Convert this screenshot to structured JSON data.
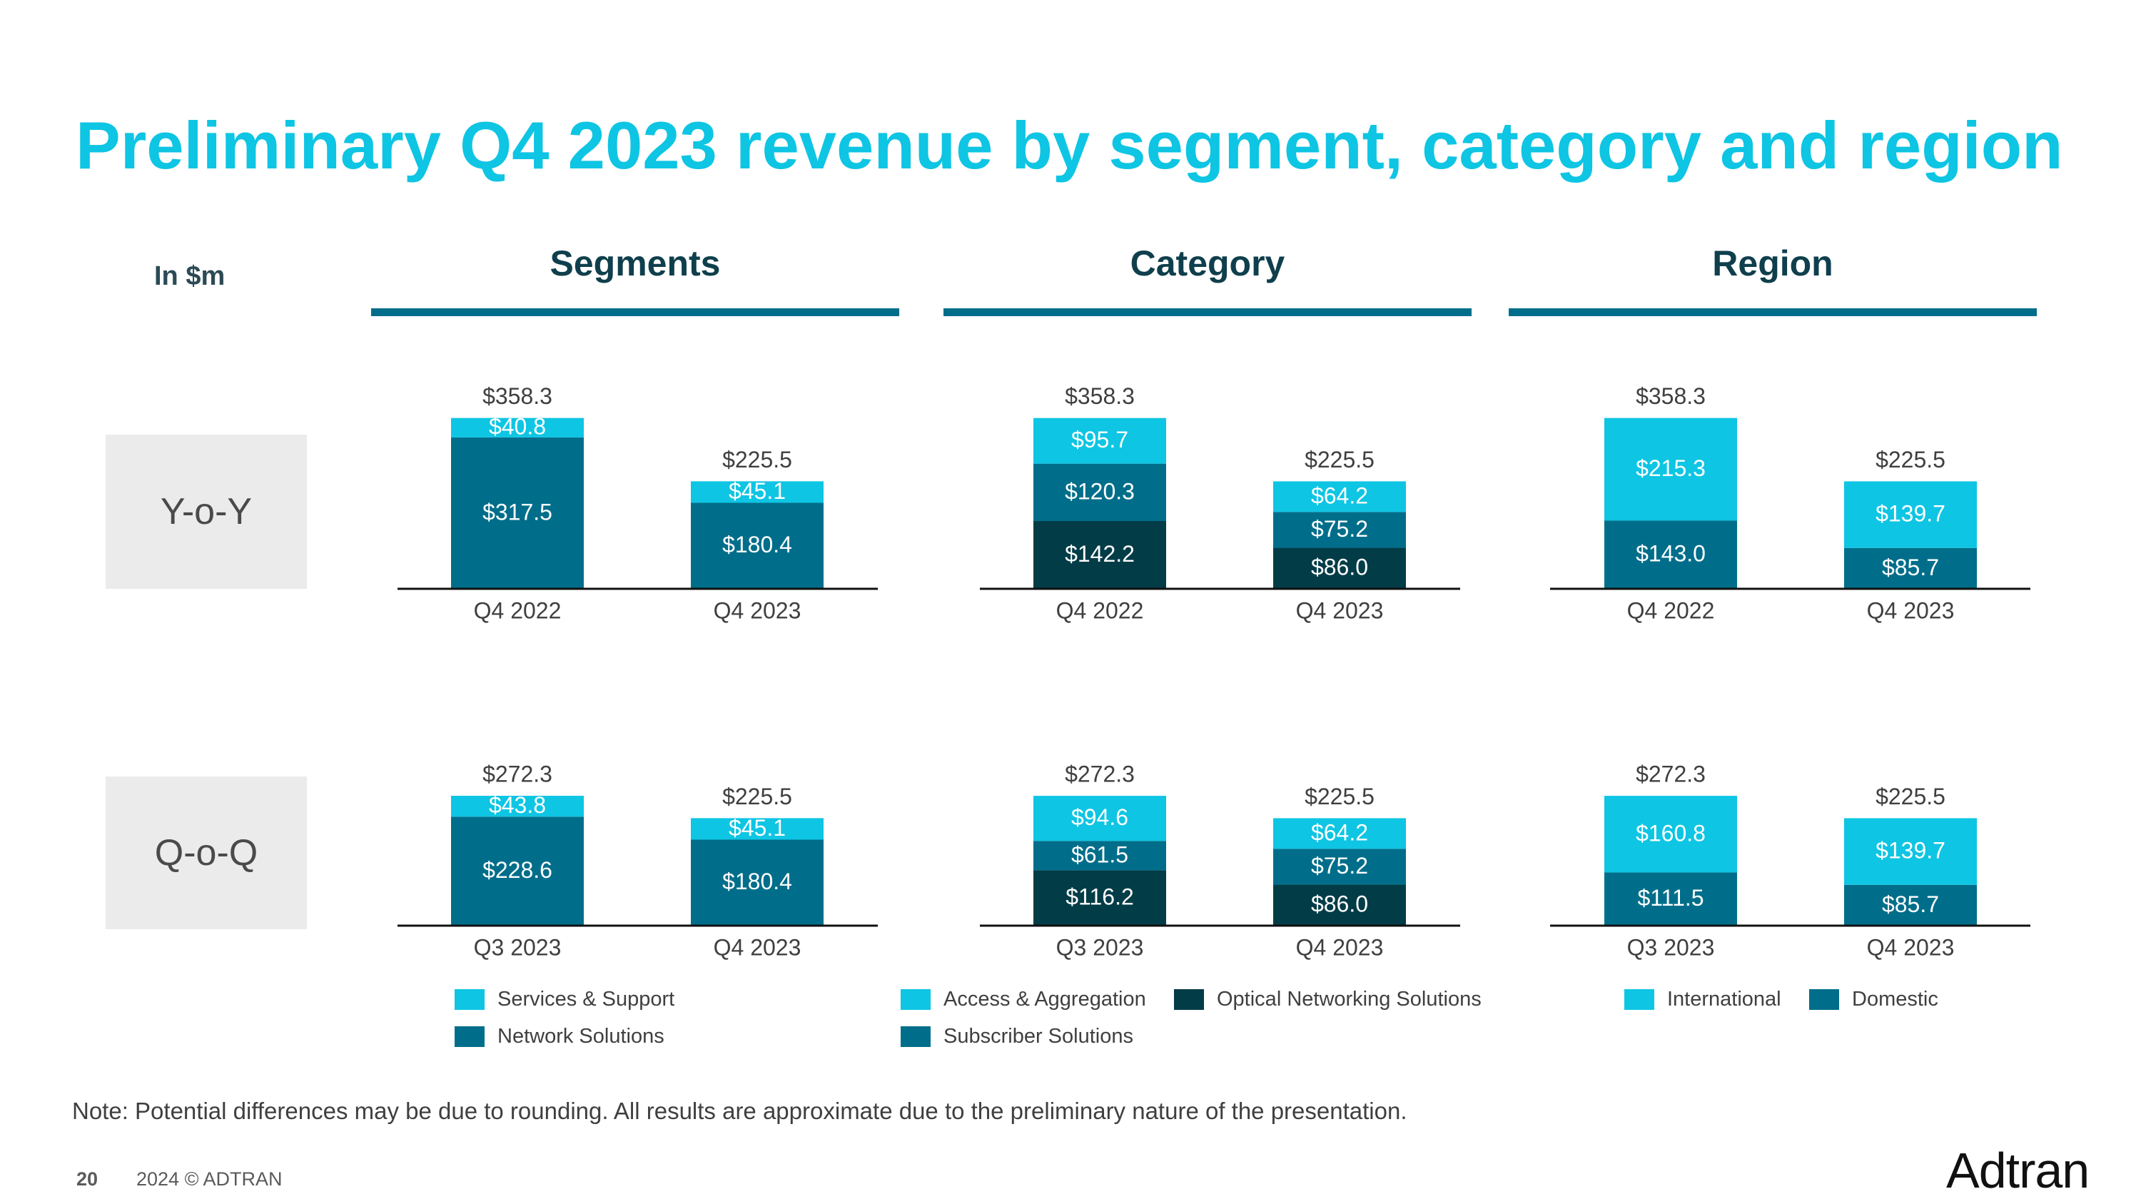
{
  "title": "Preliminary Q4 2023 revenue by segment, category and region",
  "unit_label": "In $m",
  "column_headers": [
    "Segments",
    "Category",
    "Region"
  ],
  "row_labels": [
    "Y-o-Y",
    "Q-o-Q"
  ],
  "colors": {
    "title": "#0ec5e3",
    "light_cyan": "#0ec5e3",
    "teal": "#006e8a",
    "dark_teal": "#023c47"
  },
  "chart_data": [
    {
      "type": "bar",
      "stacked": true,
      "title": "Segments",
      "row": "Y-o-Y",
      "categories": [
        "Q4 2022",
        "Q4 2023"
      ],
      "totals": [
        "$358.3",
        "$225.5"
      ],
      "series": [
        {
          "name": "Network Solutions",
          "color": "#006e8a",
          "values": [
            317.5,
            180.4
          ],
          "labels": [
            "$317.5",
            "$180.4"
          ]
        },
        {
          "name": "Services & Support",
          "color": "#0ec5e3",
          "values": [
            40.8,
            45.1
          ],
          "labels": [
            "$40.8",
            "$45.1"
          ]
        }
      ]
    },
    {
      "type": "bar",
      "stacked": true,
      "title": "Category",
      "row": "Y-o-Y",
      "categories": [
        "Q4 2022",
        "Q4 2023"
      ],
      "totals": [
        "$358.3",
        "$225.5"
      ],
      "series": [
        {
          "name": "Optical Networking Solutions",
          "color": "#023c47",
          "values": [
            142.2,
            86.0
          ],
          "labels": [
            "$142.2",
            "$86.0"
          ]
        },
        {
          "name": "Subscriber Solutions",
          "color": "#006e8a",
          "values": [
            120.3,
            75.2
          ],
          "labels": [
            "$120.3",
            "$75.2"
          ]
        },
        {
          "name": "Access & Aggregation",
          "color": "#0ec5e3",
          "values": [
            95.7,
            64.2
          ],
          "labels": [
            "$95.7",
            "$64.2"
          ]
        }
      ]
    },
    {
      "type": "bar",
      "stacked": true,
      "title": "Region",
      "row": "Y-o-Y",
      "categories": [
        "Q4 2022",
        "Q4 2023"
      ],
      "totals": [
        "$358.3",
        "$225.5"
      ],
      "series": [
        {
          "name": "Domestic",
          "color": "#006e8a",
          "values": [
            143.0,
            85.7
          ],
          "labels": [
            "$143.0",
            "$85.7"
          ]
        },
        {
          "name": "International",
          "color": "#0ec5e3",
          "values": [
            215.3,
            139.7
          ],
          "labels": [
            "$215.3",
            "$139.7"
          ]
        }
      ]
    },
    {
      "type": "bar",
      "stacked": true,
      "title": "Segments",
      "row": "Q-o-Q",
      "categories": [
        "Q3 2023",
        "Q4 2023"
      ],
      "totals": [
        "$272.3",
        "$225.5"
      ],
      "series": [
        {
          "name": "Network Solutions",
          "color": "#006e8a",
          "values": [
            228.6,
            180.4
          ],
          "labels": [
            "$228.6",
            "$180.4"
          ]
        },
        {
          "name": "Services & Support",
          "color": "#0ec5e3",
          "values": [
            43.8,
            45.1
          ],
          "labels": [
            "$43.8",
            "$45.1"
          ]
        }
      ]
    },
    {
      "type": "bar",
      "stacked": true,
      "title": "Category",
      "row": "Q-o-Q",
      "categories": [
        "Q3 2023",
        "Q4 2023"
      ],
      "totals": [
        "$272.3",
        "$225.5"
      ],
      "series": [
        {
          "name": "Optical Networking Solutions",
          "color": "#023c47",
          "values": [
            116.2,
            86.0
          ],
          "labels": [
            "$116.2",
            "$86.0"
          ]
        },
        {
          "name": "Subscriber Solutions",
          "color": "#006e8a",
          "values": [
            61.5,
            75.2
          ],
          "labels": [
            "$61.5",
            "$75.2"
          ]
        },
        {
          "name": "Access & Aggregation",
          "color": "#0ec5e3",
          "values": [
            94.6,
            64.2
          ],
          "labels": [
            "$94.6",
            "$64.2"
          ]
        }
      ]
    },
    {
      "type": "bar",
      "stacked": true,
      "title": "Region",
      "row": "Q-o-Q",
      "categories": [
        "Q3 2023",
        "Q4 2023"
      ],
      "totals": [
        "$272.3",
        "$225.5"
      ],
      "series": [
        {
          "name": "Domestic",
          "color": "#006e8a",
          "values": [
            111.5,
            85.7
          ],
          "labels": [
            "$111.5",
            "$85.7"
          ]
        },
        {
          "name": "International",
          "color": "#0ec5e3",
          "values": [
            160.8,
            139.7
          ],
          "labels": [
            "$160.8",
            "$139.7"
          ]
        }
      ]
    }
  ],
  "legends": {
    "segments": [
      {
        "label": "Services & Support",
        "color": "#0ec5e3"
      },
      {
        "label": "Network Solutions",
        "color": "#006e8a"
      }
    ],
    "category": [
      {
        "label": "Access & Aggregation",
        "color": "#0ec5e3"
      },
      {
        "label": "Optical Networking Solutions",
        "color": "#023c47"
      },
      {
        "label": "Subscriber Solutions",
        "color": "#006e8a"
      }
    ],
    "region": [
      {
        "label": "International",
        "color": "#0ec5e3"
      },
      {
        "label": "Domestic",
        "color": "#006e8a"
      }
    ]
  },
  "note": "Note: Potential differences may be due to rounding. All results are approximate due to the preliminary nature of the presentation.",
  "footer": {
    "page_number": "20",
    "copyright": "2024 © ADTRAN",
    "logo_text": "Adtran"
  }
}
